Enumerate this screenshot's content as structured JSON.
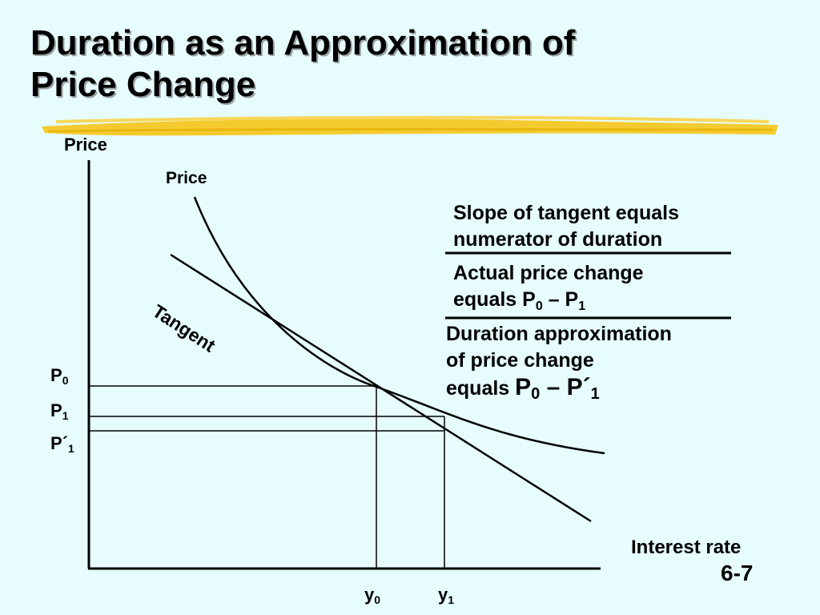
{
  "title": {
    "line1": "Duration as an Approximation of",
    "line2": "Price Change"
  },
  "axes": {
    "y_label": "Price",
    "x_label": "Interest rate"
  },
  "curve_label": "Price",
  "tangent_label": "Tangent",
  "price_levels": [
    {
      "base": "P",
      "prime": "",
      "sub": "0"
    },
    {
      "base": "P",
      "prime": "",
      "sub": "1"
    },
    {
      "base": "P",
      "prime": "´",
      "sub": "1"
    }
  ],
  "yields": [
    {
      "base": "y",
      "sub": "0"
    },
    {
      "base": "y",
      "sub": "1"
    }
  ],
  "notes": {
    "slope_line1": "Slope of tangent equals",
    "slope_line2": "numerator of duration",
    "actual_line1": "Actual price change",
    "actual_prefix": "equals ",
    "actual_a": "P",
    "actual_a_sub": "0",
    "actual_op": " – ",
    "actual_b": "P",
    "actual_b_sub": "1",
    "approx_line1": "Duration approximation",
    "approx_line2": "of price change",
    "approx_prefix": "equals ",
    "approx_a": "P",
    "approx_a_sub": "0",
    "approx_op": " – ",
    "approx_b": "P´",
    "approx_b_sub": "1"
  },
  "slide_number": "6-7",
  "colors": {
    "background": "#e6fcfd",
    "highlight": "#f5c518",
    "line": "#000000"
  }
}
